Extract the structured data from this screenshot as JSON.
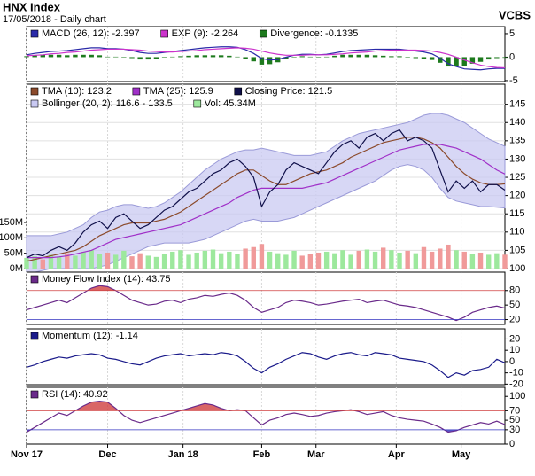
{
  "header": {
    "title": "HNX Index",
    "subtitle": "17/05/2018 - Daily chart",
    "source": "VCBS"
  },
  "chart_data": [
    {
      "type": "line",
      "xlim": [
        0,
        59
      ],
      "ylim": [
        -5.2,
        6.5
      ],
      "yticks": [
        5,
        0,
        -5
      ],
      "grid": false,
      "series": [
        {
          "name": "MACD (26, 12): -2.397",
          "type": "line",
          "color": "#2a2aa8",
          "values": [
            0.5,
            0.8,
            1,
            1.2,
            1.3,
            1.4,
            1.6,
            1.8,
            2,
            2,
            1.8,
            1.8,
            1.7,
            1.4,
            1,
            0.8,
            0.8,
            1,
            1.2,
            1.4,
            1.6,
            1.8,
            2,
            2.1,
            2.2,
            2.2,
            2.1,
            1.6,
            0.8,
            -0.3,
            -0.6,
            -0.5,
            0,
            0.4,
            0.6,
            0.6,
            0.5,
            0.6,
            0.9,
            1.2,
            1.4,
            1.5,
            1.6,
            1.7,
            1.7,
            1.7,
            1.7,
            1.5,
            1.3,
            1.1,
            0.7,
            -0.2,
            -1.4,
            -2,
            -2.5,
            -2.6,
            -2.7,
            -2.5,
            -2.4,
            -2.397
          ]
        },
        {
          "name": "EXP (9): -2.264",
          "type": "line",
          "color": "#cc33cc",
          "values": [
            0.3,
            0.4,
            0.5,
            0.7,
            0.8,
            1,
            1.1,
            1.3,
            1.5,
            1.6,
            1.7,
            1.7,
            1.7,
            1.6,
            1.5,
            1.3,
            1.2,
            1.1,
            1.1,
            1.2,
            1.3,
            1.4,
            1.6,
            1.7,
            1.8,
            1.9,
            2,
            1.9,
            1.7,
            1.3,
            0.9,
            0.6,
            0.4,
            0.4,
            0.4,
            0.5,
            0.5,
            0.5,
            0.6,
            0.7,
            0.9,
            1,
            1.1,
            1.3,
            1.4,
            1.5,
            1.5,
            1.5,
            1.5,
            1.4,
            1.3,
            1,
            0.6,
            0,
            -0.6,
            -1.2,
            -1.7,
            -2,
            -2.2,
            -2.264
          ]
        },
        {
          "name": "Divergence: -0.1335",
          "type": "bar",
          "color": "#1d7a1d",
          "values": [
            0.2,
            0.4,
            0.5,
            0.5,
            0.5,
            0.4,
            0.5,
            0.5,
            0.5,
            0.4,
            0.1,
            0.1,
            0,
            -0.2,
            -0.5,
            -0.5,
            -0.4,
            -0.1,
            0.1,
            0.2,
            0.3,
            0.4,
            0.4,
            0.4,
            0.4,
            0.3,
            0.1,
            -0.3,
            -0.9,
            -1.6,
            -1.5,
            -1.1,
            -0.4,
            0,
            0.2,
            0.1,
            0,
            0.1,
            0.3,
            0.5,
            0.5,
            0.5,
            0.5,
            0.4,
            0.3,
            0.2,
            0.2,
            0,
            -0.2,
            -0.3,
            -0.6,
            -1.2,
            -2,
            -2,
            -1.9,
            -1.4,
            -1,
            -0.5,
            -0.2,
            -0.1335
          ]
        }
      ]
    },
    {
      "type": "line",
      "xlim": [
        0,
        59
      ],
      "ylim": [
        100,
        150.5
      ],
      "yticks": [
        100,
        105,
        110,
        115,
        120,
        125,
        130,
        135,
        140,
        145
      ],
      "grid": true,
      "y2lim": [
        0,
        600
      ],
      "y2ticks": [
        {
          "value": 0,
          "label": "0M"
        },
        {
          "value": 50,
          "label": "50M"
        },
        {
          "value": 100,
          "label": "100M"
        },
        {
          "value": 150,
          "label": "150M"
        }
      ],
      "series": [
        {
          "name": "TMA (10): 123.2",
          "type": "line",
          "color": "#8b4a2b",
          "values": [
            102,
            102.5,
            103,
            103.5,
            104,
            104.5,
            105,
            106,
            107.5,
            109,
            110,
            111,
            112,
            112.5,
            112.5,
            112.5,
            113,
            113.5,
            114.5,
            115.5,
            117,
            118.5,
            120,
            121.5,
            123,
            124.5,
            126,
            127,
            127,
            125.5,
            124,
            123,
            123,
            124,
            125,
            126,
            126.5,
            127,
            128,
            129,
            130.5,
            131.5,
            132.5,
            133.5,
            134.5,
            135,
            135.5,
            136,
            136,
            135.5,
            134.5,
            133,
            130.5,
            128,
            126,
            124.5,
            123.5,
            123,
            123,
            123.2
          ]
        },
        {
          "name": "TMA (25): 125.9",
          "type": "line",
          "color": "#a030c8",
          "values": [
            103,
            103,
            103,
            103,
            103.2,
            103.5,
            104,
            104.5,
            105,
            106,
            107,
            108,
            108.5,
            109,
            109.5,
            110,
            110.5,
            111,
            111.5,
            112,
            113,
            114,
            115,
            116,
            117,
            118,
            119.5,
            120.5,
            121.5,
            122,
            122,
            122,
            122,
            122,
            122,
            122.5,
            123,
            123.5,
            124.5,
            125.5,
            126.5,
            127.5,
            128.5,
            129.5,
            130.5,
            131.5,
            132.5,
            133,
            133.5,
            134,
            134,
            134,
            133.5,
            133,
            132,
            131,
            130,
            128.5,
            127,
            125.9
          ]
        },
        {
          "name": "Closing Price: 121.5",
          "type": "line",
          "color": "#10104a",
          "values": [
            103,
            104,
            103.5,
            105,
            106,
            105,
            107,
            110,
            112,
            113,
            111,
            114,
            115,
            113,
            111,
            112,
            114,
            116,
            117,
            119,
            121,
            122,
            124,
            126,
            127,
            129,
            130,
            128,
            125,
            117,
            121,
            123,
            127,
            129,
            128,
            127,
            126,
            129,
            132,
            134,
            135,
            133,
            136,
            137,
            135,
            137,
            138,
            135,
            136,
            135,
            133,
            127,
            121,
            124,
            122,
            124,
            121,
            123,
            123,
            121.5
          ]
        },
        {
          "name": "Bollinger (20, 2): 116.6 - 133.5",
          "type": "band",
          "color": "#c9c9f2",
          "upper": [
            109,
            109,
            109,
            109,
            109.5,
            110,
            111,
            112,
            114,
            115.5,
            116,
            117,
            117.5,
            117.5,
            117,
            116.5,
            117,
            118,
            119.5,
            121,
            123,
            125,
            127,
            128.5,
            130,
            131,
            132,
            132.5,
            132.5,
            133,
            132.5,
            132,
            131.5,
            131,
            131,
            131,
            131.5,
            132,
            133.5,
            135,
            136,
            137,
            137.5,
            138,
            138.5,
            139,
            139.5,
            140,
            141,
            142,
            142.5,
            142.5,
            142,
            141,
            140,
            138.5,
            137,
            135.5,
            134.5,
            133.5
          ],
          "lower": [
            99,
            99,
            99.5,
            100,
            100,
            100,
            100,
            100,
            100,
            100.5,
            101,
            102,
            103,
            104,
            105,
            106,
            106.5,
            107,
            107,
            107,
            107,
            107.5,
            108,
            109,
            110,
            111,
            112,
            113,
            113.5,
            113,
            113,
            113,
            113.5,
            114,
            115,
            116,
            117,
            118,
            119,
            120,
            121,
            122,
            123,
            124,
            125.5,
            127,
            128,
            128.5,
            128,
            127,
            125,
            122,
            119.5,
            118.5,
            118,
            117.5,
            117,
            117,
            116.8,
            116.6
          ]
        },
        {
          "name": "Vol: 45.34M",
          "type": "bar",
          "axis": "y2",
          "color": "#9de89d",
          "down_color": "#f09a9a",
          "values": [
            35,
            40,
            30,
            45,
            38,
            50,
            42,
            55,
            60,
            48,
            52,
            45,
            58,
            40,
            50,
            42,
            38,
            48,
            55,
            60,
            45,
            52,
            58,
            62,
            50,
            55,
            48,
            65,
            70,
            80,
            55,
            50,
            45,
            58,
            42,
            48,
            52,
            55,
            50,
            60,
            45,
            58,
            62,
            55,
            68,
            60,
            52,
            58,
            50,
            70,
            55,
            65,
            78,
            60,
            55,
            48,
            52,
            45,
            50,
            45.34
          ]
        }
      ]
    },
    {
      "type": "line",
      "xlim": [
        0,
        59
      ],
      "ylim": [
        10,
        118
      ],
      "yticks": [
        80,
        50,
        20
      ],
      "grid": false,
      "levels": [
        {
          "value": 80,
          "color": "#d04040",
          "fill": "above"
        },
        {
          "value": 20,
          "color": "#3333c0",
          "fill": "below"
        }
      ],
      "series": [
        {
          "name": "Money Flow Index (14): 43.75",
          "type": "line",
          "color": "#6a2a8a",
          "values": [
            40,
            45,
            50,
            55,
            60,
            55,
            65,
            75,
            85,
            90,
            88,
            80,
            70,
            60,
            55,
            50,
            52,
            58,
            60,
            55,
            62,
            65,
            70,
            68,
            72,
            75,
            70,
            60,
            45,
            35,
            40,
            45,
            55,
            60,
            58,
            55,
            50,
            52,
            55,
            58,
            60,
            62,
            55,
            58,
            60,
            55,
            50,
            48,
            45,
            40,
            35,
            30,
            25,
            18,
            25,
            35,
            40,
            45,
            48,
            43.75
          ]
        }
      ]
    },
    {
      "type": "line",
      "xlim": [
        0,
        59
      ],
      "ylim": [
        -20.5,
        29
      ],
      "yticks": [
        20,
        10,
        0,
        -10,
        -20
      ],
      "grid": false,
      "series": [
        {
          "name": "Momentum (12): -1.14",
          "type": "line",
          "color": "#1a1a8a",
          "values": [
            -5,
            -3,
            0,
            2,
            4,
            3,
            5,
            6,
            7,
            6,
            3,
            2,
            0,
            -2,
            -3,
            0,
            3,
            5,
            6,
            7,
            5,
            6,
            7,
            6,
            8,
            7,
            5,
            0,
            -6,
            -10,
            -5,
            -2,
            2,
            5,
            8,
            7,
            4,
            2,
            5,
            7,
            8,
            6,
            5,
            8,
            7,
            6,
            3,
            2,
            1,
            0,
            -3,
            -8,
            -14,
            -10,
            -12,
            -8,
            -7,
            -5,
            2,
            -1.14
          ]
        }
      ]
    },
    {
      "type": "line",
      "xlim": [
        0,
        59
      ],
      "ylim": [
        0,
        119
      ],
      "yticks": [
        100,
        70,
        50,
        30,
        0
      ],
      "grid": false,
      "levels": [
        {
          "value": 70,
          "color": "#d04040",
          "fill": "above"
        },
        {
          "value": 30,
          "color": "#3333c0",
          "fill": "below"
        }
      ],
      "xticks": [
        {
          "value": 0,
          "label": "Nov 17"
        },
        {
          "value": 10,
          "label": "Dec"
        },
        {
          "value": 19.3,
          "label": "Jan 18"
        },
        {
          "value": 29,
          "label": "Feb"
        },
        {
          "value": 35.7,
          "label": "Mar"
        },
        {
          "value": 45.6,
          "label": "Apr"
        },
        {
          "value": 53.6,
          "label": "May"
        }
      ],
      "series": [
        {
          "name": "RSI (14): 40.92",
          "type": "line",
          "color": "#6a2a8a",
          "values": [
            25,
            35,
            45,
            55,
            65,
            60,
            70,
            80,
            88,
            90,
            88,
            75,
            60,
            50,
            45,
            50,
            55,
            60,
            65,
            70,
            75,
            80,
            85,
            82,
            75,
            70,
            72,
            70,
            55,
            40,
            50,
            55,
            62,
            65,
            62,
            58,
            60,
            65,
            68,
            70,
            72,
            68,
            62,
            65,
            68,
            60,
            55,
            52,
            50,
            48,
            42,
            35,
            25,
            28,
            35,
            40,
            45,
            42,
            48,
            40.92
          ]
        }
      ]
    }
  ]
}
